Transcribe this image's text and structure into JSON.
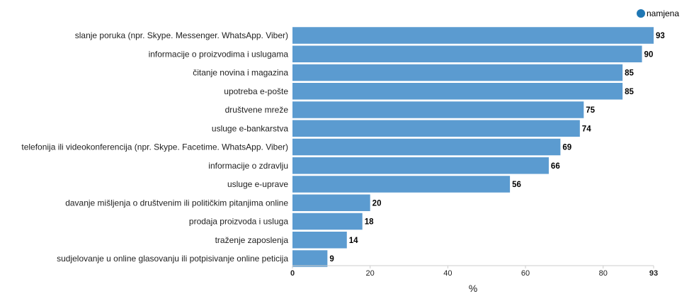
{
  "chart_data": {
    "type": "bar",
    "orientation": "horizontal",
    "legend": {
      "position": "top-right",
      "entries": [
        "namjena"
      ]
    },
    "series": [
      {
        "name": "namjena",
        "color": "#5b9bd0",
        "legend_color": "#1f77b4",
        "values": [
          93,
          90,
          85,
          85,
          75,
          74,
          69,
          66,
          56,
          20,
          18,
          14,
          9
        ]
      }
    ],
    "categories": [
      "slanje poruka (npr. Skype. Messenger. WhatsApp. Viber)",
      "informacije o proizvodima i uslugama",
      "čitanje novina i magazina",
      "upotreba e-pošte",
      "društvene mreže",
      "usluge e-bankarstva",
      "telefonija ili videokonferencija (npr. Skype. Facetime. WhatsApp. Viber)",
      "informacije o zdravlju",
      "usluge e-uprave",
      "davanje mišljenja o društvenim ili političkim pitanjima online",
      "prodaja proizvoda i usluga",
      "traženje zaposlenja",
      "sudjelovanje u online glasovanju ili potpisivanje online peticija"
    ],
    "xlabel": "%",
    "xlim": [
      0,
      93
    ],
    "xticks": [
      "0",
      "20",
      "40",
      "60",
      "80",
      "93"
    ],
    "xtick_values": [
      0,
      20,
      40,
      60,
      80,
      93
    ],
    "grid": false
  }
}
